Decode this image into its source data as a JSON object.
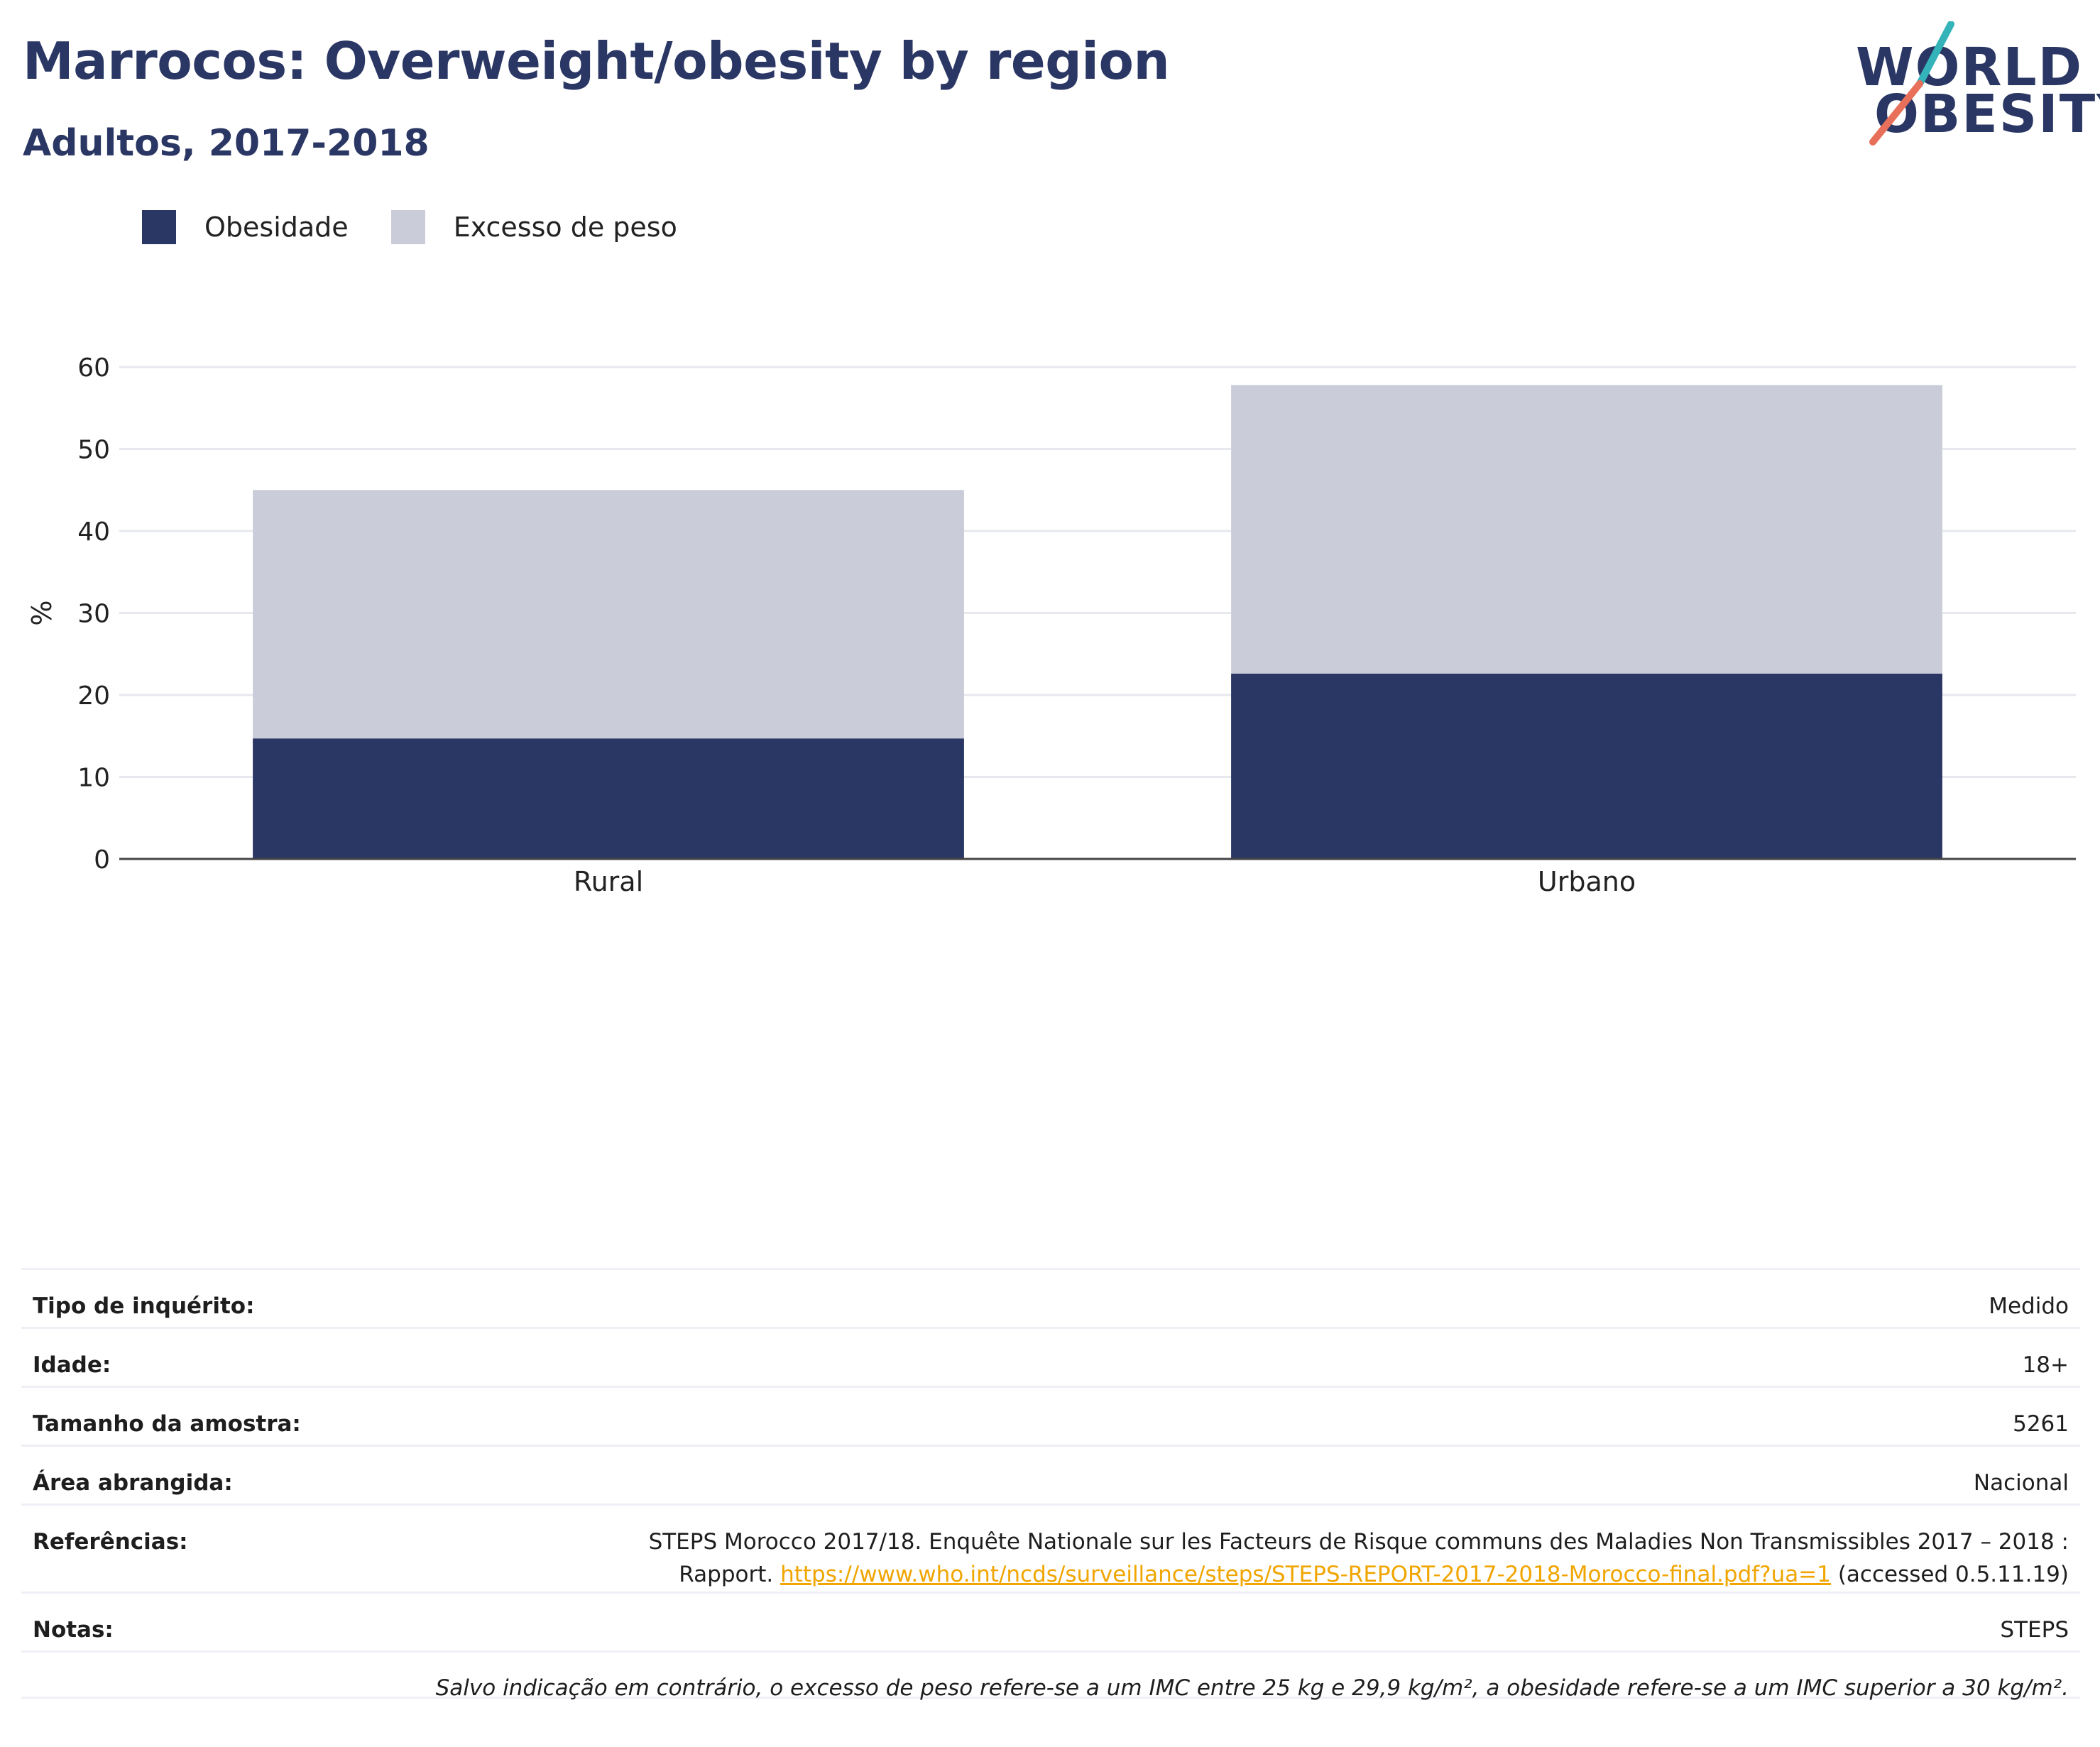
{
  "title": "Marrocos: Overweight/obesity by region",
  "subtitle": "Adultos, 2017-2018",
  "logo": {
    "line1": "WORLD",
    "line2": "OBESITY"
  },
  "colors": {
    "obesity": "#2a3663",
    "overweight": "#cacdd9",
    "title": "#2a3663",
    "link": "#f0a500"
  },
  "legend": [
    {
      "label": "Obesidade",
      "color": "#2a3663"
    },
    {
      "label": "Excesso de peso",
      "color": "#cacdd9"
    }
  ],
  "chart_data": {
    "type": "bar",
    "stacked": true,
    "categories": [
      "Rural",
      "Urbano"
    ],
    "series": [
      {
        "name": "Obesidade",
        "values": [
          14.7,
          22.6
        ]
      },
      {
        "name": "Excesso de peso",
        "values": [
          30.3,
          35.2
        ]
      }
    ],
    "ylabel": "%",
    "ylim": [
      0,
      60
    ],
    "yticks": [
      0,
      10,
      20,
      30,
      40,
      50,
      60
    ],
    "grid": true,
    "legend_position": "top-left"
  },
  "info": {
    "survey_type_label": "Tipo de inquérito:",
    "survey_type_value": "Medido",
    "age_label": "Idade:",
    "age_value": "18+",
    "sample_label": "Tamanho da amostra:",
    "sample_value": "5261",
    "area_label": "Área abrangida:",
    "area_value": "Nacional",
    "refs_label": "Referências:",
    "refs_line1": "STEPS Morocco 2017/18. Enquête Nationale sur les Facteurs de Risque communs des Maladies Non Transmissibles 2017 – 2018 :",
    "refs_line2_prefix": "Rapport. ",
    "refs_link": "https://www.who.int/ncds/surveillance/steps/STEPS-REPORT-2017-2018-Morocco-final.pdf?ua=1",
    "refs_line2_suffix": " (accessed 0.5.11.19)",
    "notes_label": "Notas:",
    "notes_value": "STEPS",
    "footnote": "Salvo indicação em contrário, o excesso de peso refere-se a um IMC entre 25 kg e 29,9 kg/m², a obesidade refere-se a um IMC superior a 30 kg/m²."
  }
}
